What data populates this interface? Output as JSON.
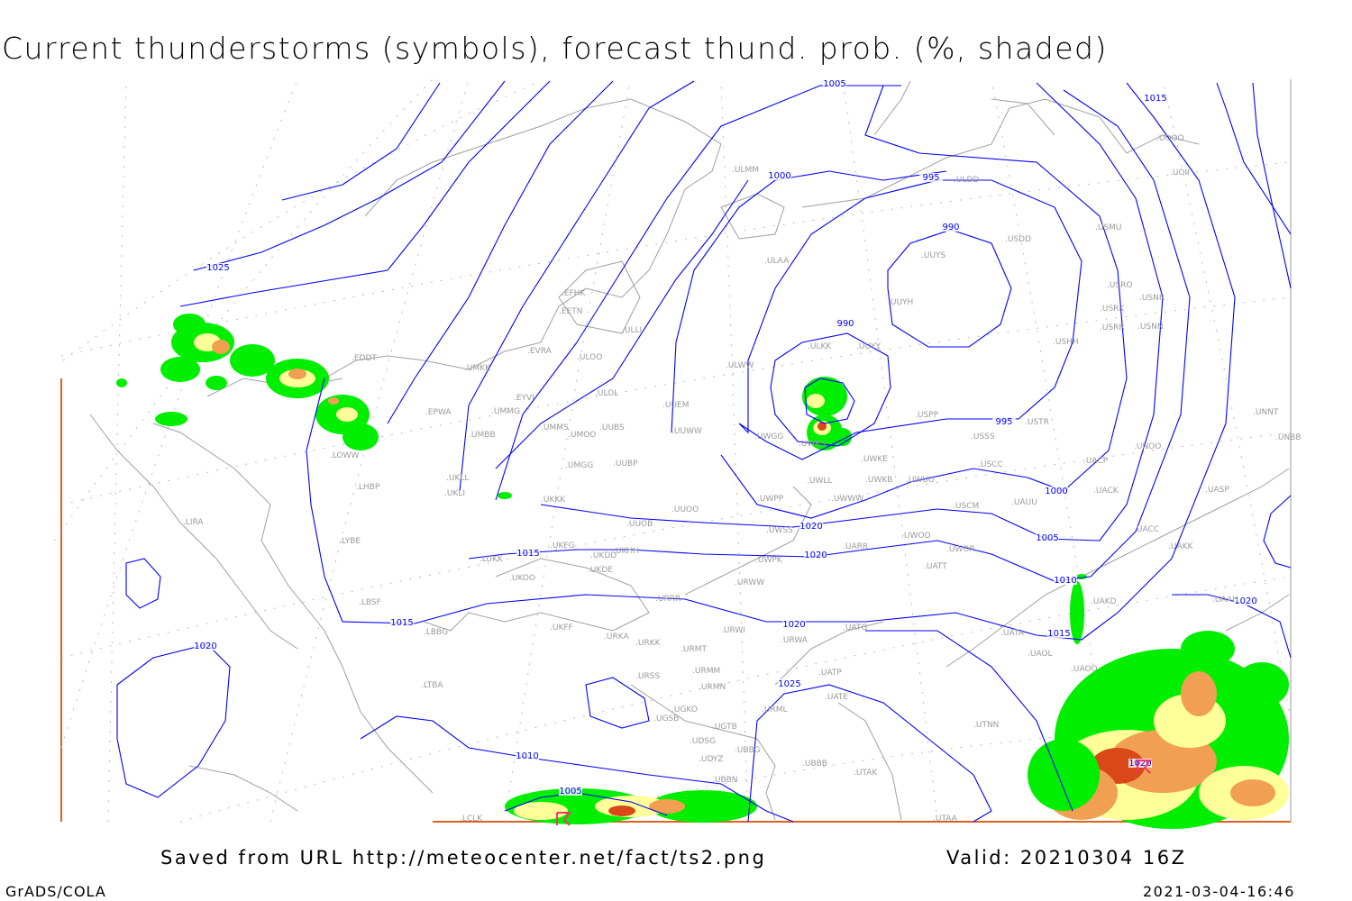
{
  "title": "Current thunderstorms (symbols), forecast thund. prob. (%, shaded)",
  "footer": {
    "saved_from": "Saved from URL http://meteocenter.net/fact/ts2.png",
    "valid": "Valid: 20210304 16Z",
    "software": "GrADS/COLA",
    "timestamp": "2021-03-04-16:46"
  },
  "colors": {
    "isobar": "#0000ff",
    "coastline": "#a0a0a0",
    "prob_low": "#00ee00",
    "prob_mid": "#ffff99",
    "prob_high": "#f0a050",
    "prob_max": "#d84818",
    "thunder_symbol": "#ff3070"
  },
  "isobar_labels": [
    "1005",
    "1015",
    "1025",
    "1000",
    "995",
    "990",
    "990",
    "995",
    "1000",
    "1005",
    "1010",
    "1015",
    "1020",
    "1020",
    "1025",
    "1020",
    "1015",
    "1010",
    "1005",
    "1015",
    "1020",
    "1020",
    "1020"
  ],
  "stations": [
    "ULMM",
    "ULAA",
    "EFHK",
    "EETN",
    "ULLI",
    "EVRA",
    "ULOO",
    "UMKK",
    "EDDT",
    "EYVI",
    "ULOL",
    "UMMG",
    "EPWA",
    "UUEM",
    "UMMS",
    "UMOO",
    "UUBS",
    "UUWW",
    "UMBB",
    "ULWW",
    "ULKK",
    "UUYY",
    "UUYH",
    "UUYS",
    "USDD",
    "ULDD",
    "USMU",
    "USRO",
    "USRK",
    "USNR",
    "USRR",
    "USNN",
    "USHH",
    "USPP",
    "USSS",
    "USTR",
    "UWGG",
    "UWKS",
    "UWKE",
    "UWKB",
    "UWUU",
    "USCC",
    "UNOO",
    "UNBB",
    "UNNT",
    "UOOO",
    "UOII",
    "UACP",
    "UACK",
    "UASP",
    "UACC",
    "UAKK",
    "UAAH",
    "UAKD",
    "UATA",
    "UAOL",
    "UAOO",
    "UATG",
    "UATT",
    "UWOO",
    "UWOR",
    "USCM",
    "UAUU",
    "UATE",
    "UATP",
    "UTNN",
    "UTAK",
    "UTAA",
    "UBBB",
    "URML",
    "UGTB",
    "UBBG",
    "UBBN",
    "UDYZ",
    "UDSG",
    "UGSB",
    "UGKO",
    "URMN",
    "URMM",
    "URSS",
    "URMT",
    "URKK",
    "URKA",
    "UKFF",
    "URWI",
    "URWA",
    "URRR",
    "URWW",
    "UWWW",
    "UWLL",
    "UWPP",
    "UWSS",
    "UARR",
    "UWPK",
    "UUOO",
    "UUOB",
    "UKKK",
    "UKLL",
    "UKLI",
    "UUBP",
    "UMGG",
    "UKHH",
    "UKDD",
    "UKDE",
    "UKFG",
    "LUKK",
    "UKOO",
    "LBBG",
    "LBSF",
    "LYBE",
    "LHBP",
    "LOWW",
    "LIRA",
    "LTBA",
    "LCLK"
  ]
}
